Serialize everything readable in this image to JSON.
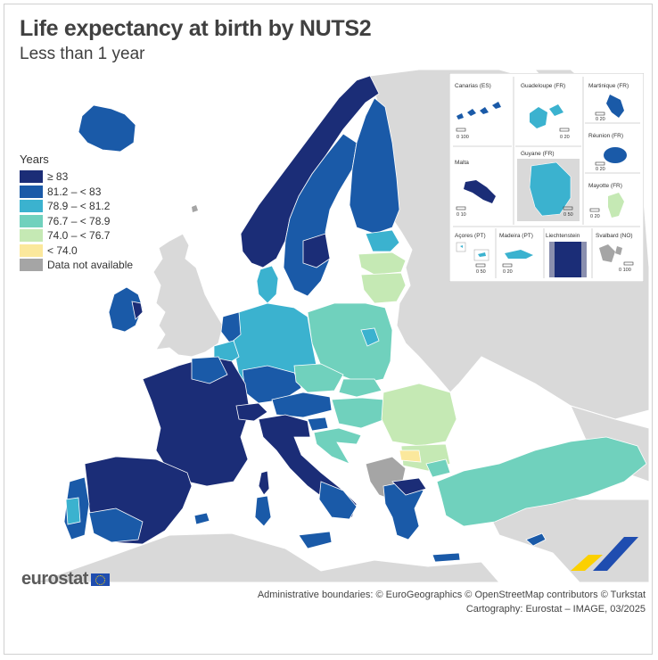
{
  "header": {
    "title": "Life expectancy at birth by NUTS2",
    "subtitle": "Less than 1 year"
  },
  "legend": {
    "title": "Years",
    "items": [
      {
        "label": "≥ 83",
        "color": "#1b2d77"
      },
      {
        "label": "81.2 – < 83",
        "color": "#1a5aa8"
      },
      {
        "label": "78.9 – < 81.2",
        "color": "#3bb2cf"
      },
      {
        "label": "76.7 – < 78.9",
        "color": "#70d1bd"
      },
      {
        "label": "74.0 – < 76.7",
        "color": "#c5e9b4"
      },
      {
        "label": "< 74.0",
        "color": "#fbe89c"
      },
      {
        "label": "Data not available",
        "color": "#a5a5a5"
      }
    ]
  },
  "insets": [
    {
      "name": "Canarias (ES)",
      "scale": "0  100",
      "color": "#1a5aa8"
    },
    {
      "name": "Guadeloupe (FR)",
      "scale": "0  20",
      "color": "#3bb2cf"
    },
    {
      "name": "Martinique (FR)",
      "scale": "0  20",
      "color": "#1a5aa8"
    },
    {
      "name": "Réunion (FR)",
      "scale": "0  20",
      "color": "#1a5aa8"
    },
    {
      "name": "Malta",
      "scale": "0  10",
      "color": "#1b2d77"
    },
    {
      "name": "Guyane (FR)",
      "scale": "0  50",
      "color": "#3bb2cf"
    },
    {
      "name": "Mayotte (FR)",
      "scale": "0  20",
      "color": "#c5e9b4"
    },
    {
      "name": "Açores (PT)",
      "scale": "0  50",
      "color": "#3bb2cf"
    },
    {
      "name": "Madeira (PT)",
      "scale": "0  20",
      "color": "#3bb2cf"
    },
    {
      "name": "Liechtenstein",
      "scale": "",
      "color": "#1b2d77"
    },
    {
      "name": "Svalbard (NO)",
      "scale": "0  100",
      "color": "#a5a5a5"
    }
  ],
  "brand": {
    "logo_text": "eurostat"
  },
  "credits": {
    "line1": "Administrative boundaries: © EuroGeographics © OpenStreetMap contributors © Turkstat",
    "line2": "Cartography: Eurostat – IMAGE, 03/2025"
  },
  "colors": {
    "sea": "#ffffff",
    "non_eu_land": "#d9d9d9",
    "border": "#ffffff"
  }
}
